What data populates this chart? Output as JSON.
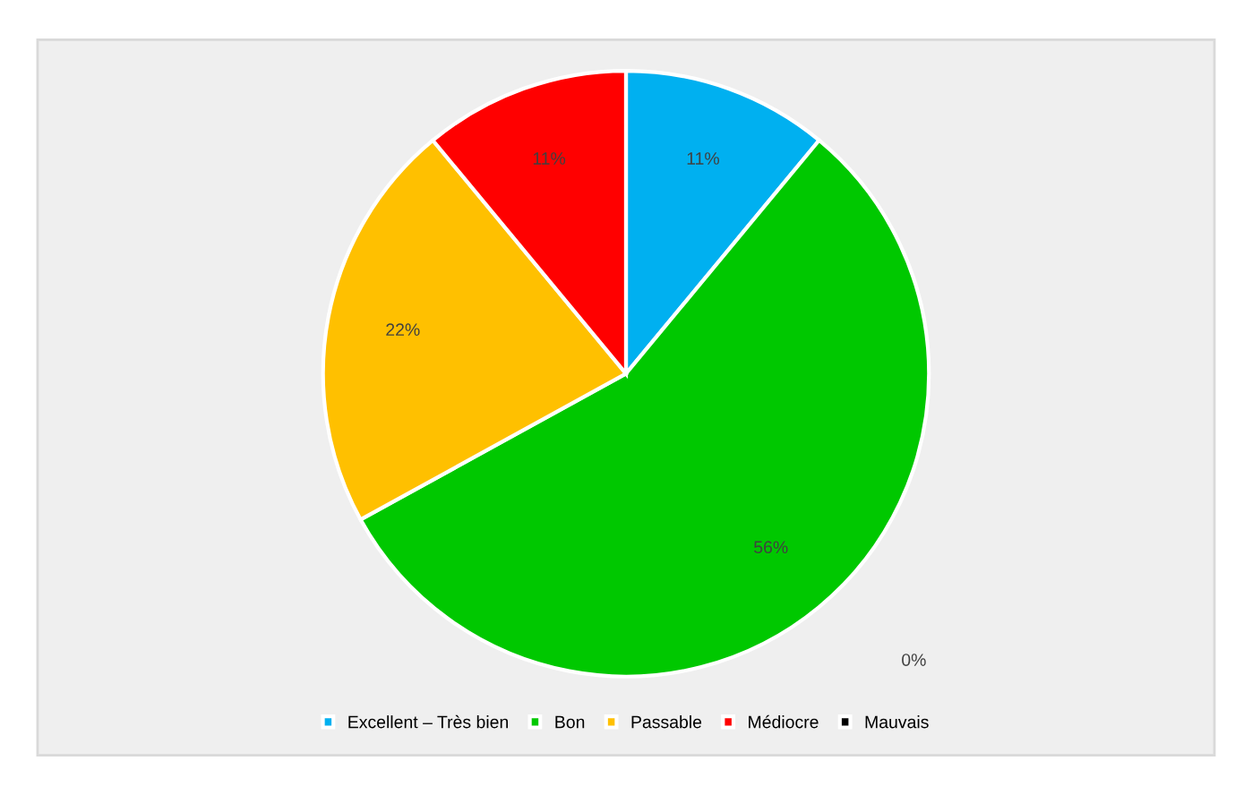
{
  "chart_data": {
    "type": "pie",
    "categories": [
      "Excellent – Très bien",
      "Bon",
      "Passable",
      "Médiocre",
      "Mauvais"
    ],
    "values": [
      11,
      56,
      22,
      11,
      0
    ],
    "colors": [
      "#00b0f0",
      "#00c800",
      "#ffc000",
      "#ff0000",
      "#000000"
    ],
    "value_labels": [
      "11%",
      "56%",
      "22%",
      "11%",
      "0%"
    ],
    "legend": "bottom"
  }
}
